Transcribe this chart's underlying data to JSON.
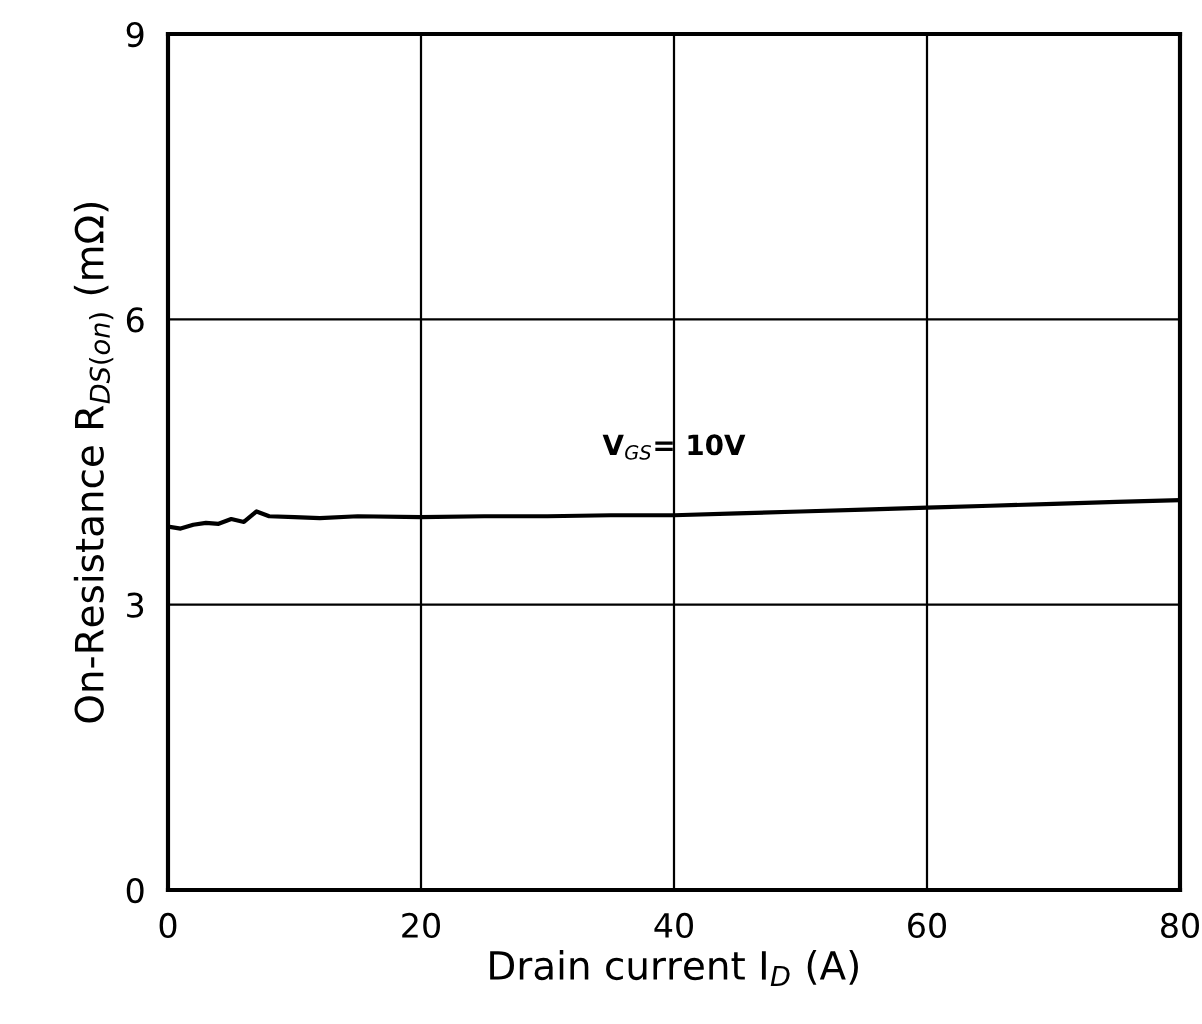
{
  "chart_data": {
    "type": "line",
    "xlabel": "Drain current I$_{D}$ (A)",
    "ylabel": "On-Resistance R$_{DS(on)}$ (mΩ)",
    "x": [
      0,
      1,
      2,
      3,
      4,
      5,
      6,
      7,
      8,
      10,
      12,
      15,
      20,
      25,
      30,
      35,
      40,
      45,
      50,
      55,
      60,
      65,
      70,
      75,
      80
    ],
    "series": [
      {
        "color": "#000000",
        "values": [
          3.82,
          3.8,
          3.84,
          3.86,
          3.85,
          3.9,
          3.87,
          3.98,
          3.93,
          3.92,
          3.91,
          3.93,
          3.92,
          3.93,
          3.93,
          3.94,
          3.94,
          3.96,
          3.98,
          4.0,
          4.02,
          4.04,
          4.06,
          4.08,
          4.1
        ]
      }
    ],
    "annotations": [
      "V$_{GS}$= 10V"
    ],
    "xlim": [
      0,
      80
    ],
    "ylim": [
      0,
      9
    ],
    "xticks": [
      0,
      20,
      40,
      60,
      80
    ],
    "yticks": [
      0,
      3,
      6,
      9
    ],
    "grid": true,
    "marker": "none",
    "line_style": "solid"
  }
}
